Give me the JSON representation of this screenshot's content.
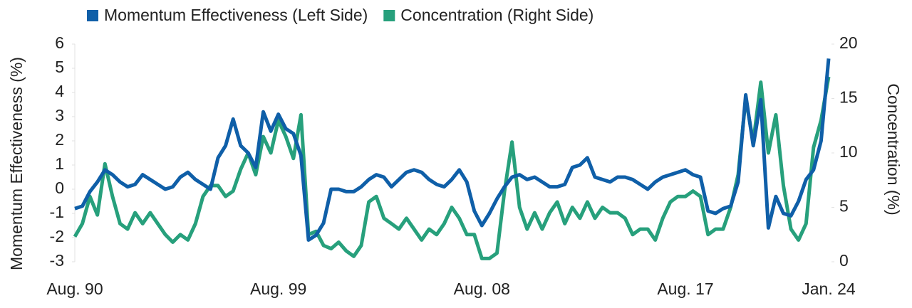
{
  "chart_data": {
    "type": "line",
    "categories": [
      "Aug. 90",
      null,
      null,
      null,
      null,
      null,
      null,
      null,
      null,
      null,
      null,
      null,
      null,
      null,
      null,
      null,
      null,
      null,
      null,
      null,
      null,
      null,
      null,
      null,
      null,
      null,
      null,
      "Aug. 99",
      null,
      null,
      null,
      null,
      null,
      null,
      null,
      null,
      null,
      null,
      null,
      null,
      null,
      null,
      null,
      null,
      null,
      null,
      null,
      null,
      null,
      null,
      null,
      null,
      null,
      null,
      "Aug. 08",
      null,
      null,
      null,
      null,
      null,
      null,
      null,
      null,
      null,
      null,
      null,
      null,
      null,
      null,
      null,
      null,
      null,
      null,
      null,
      null,
      null,
      null,
      null,
      null,
      null,
      null,
      "Aug. 17",
      null,
      null,
      null,
      null,
      null,
      null,
      null,
      null,
      null,
      null,
      null,
      null,
      null,
      null,
      null,
      null,
      null,
      null,
      "Jan. 24"
    ],
    "y_label": "Momentum Effectiveness (%)",
    "y2_label": "Concentration (%)",
    "ylim": [
      -3,
      6
    ],
    "yticks": [
      -3,
      -2,
      -1,
      0,
      1,
      2,
      3,
      4,
      5,
      6
    ],
    "y2lim": [
      0,
      20
    ],
    "y2ticks": [
      0,
      5,
      10,
      15,
      20
    ],
    "legend": "top",
    "series": [
      {
        "name": "Momentum Effectiveness (Left Side)",
        "color": "#0f5fa8",
        "values": [
          -0.8,
          -0.7,
          -0.1,
          0.3,
          0.8,
          0.6,
          0.3,
          0.1,
          0.2,
          0.6,
          0.4,
          0.2,
          0.0,
          0.1,
          0.5,
          0.7,
          0.4,
          0.2,
          0.0,
          1.3,
          1.8,
          2.9,
          1.8,
          1.5,
          0.9,
          3.2,
          2.4,
          3.1,
          2.5,
          2.3,
          1.4,
          -2.1,
          -1.9,
          -1.4,
          0.0,
          0.0,
          -0.1,
          -0.1,
          0.1,
          0.4,
          0.6,
          0.5,
          0.1,
          0.4,
          0.7,
          0.8,
          0.7,
          0.4,
          0.2,
          0.1,
          0.4,
          0.8,
          0.3,
          -0.9,
          -1.5,
          -1.0,
          -0.4,
          0.1,
          0.5,
          0.6,
          0.4,
          0.5,
          0.3,
          0.1,
          0.1,
          0.2,
          0.9,
          1.0,
          1.3,
          0.5,
          0.4,
          0.3,
          0.5,
          0.5,
          0.4,
          0.2,
          0.0,
          0.3,
          0.5,
          0.6,
          0.7,
          0.8,
          0.6,
          0.5,
          -0.9,
          -1.0,
          -0.8,
          -0.7,
          0.3,
          3.9,
          1.8,
          3.7,
          -1.6,
          -0.3,
          -1.0,
          -1.1,
          -0.5,
          0.4,
          0.8,
          2.0,
          5.4
        ]
      },
      {
        "name": "Concentration (Right Side)",
        "color": "#27a07c",
        "axis": "y2",
        "values": [
          2.3,
          3.5,
          6,
          4.3,
          9,
          6,
          3.5,
          3,
          4.5,
          3.5,
          4.5,
          3.5,
          2.5,
          1.8,
          2.5,
          2,
          3.5,
          6,
          7,
          7,
          6,
          6.5,
          8.5,
          10,
          8,
          11.5,
          10,
          13,
          11.5,
          9.5,
          13.5,
          2.5,
          2.8,
          1.5,
          1.2,
          1.8,
          1.0,
          0.5,
          1.5,
          5.5,
          6,
          4.0,
          3.5,
          3.0,
          4,
          3,
          2,
          3,
          2.5,
          3.5,
          5,
          4,
          2.5,
          2.5,
          0.3,
          0.3,
          0.8,
          6.5,
          11,
          5,
          3,
          4.5,
          3,
          4.5,
          5.5,
          3.5,
          5,
          4,
          5.5,
          4,
          5,
          4.5,
          4.5,
          4,
          2.5,
          3,
          3,
          2,
          4,
          5.5,
          6,
          6,
          6.5,
          6,
          2.5,
          3,
          3,
          5,
          8,
          15,
          11,
          16.5,
          10,
          13.5,
          7,
          3,
          2,
          3.5,
          10.5,
          13,
          17
        ]
      }
    ]
  }
}
